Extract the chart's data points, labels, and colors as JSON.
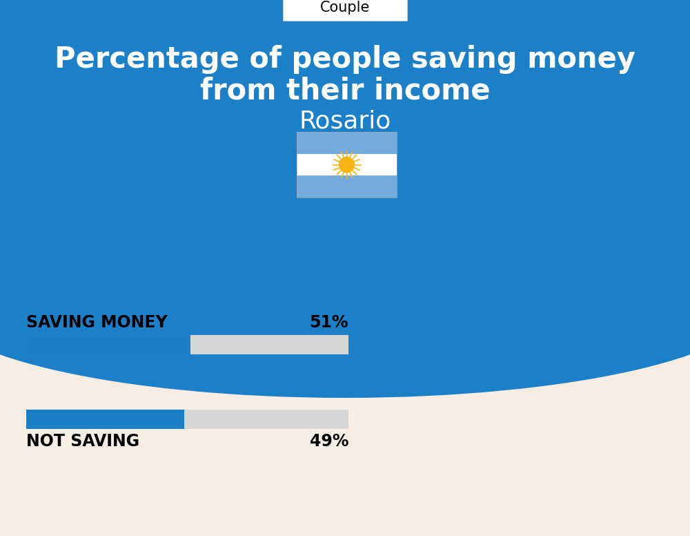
{
  "title_line1": "Percentage of people saving money",
  "title_line2": "from their income",
  "subtitle": "Rosario",
  "tab_label": "Couple",
  "blue_bg_color": "#1B80C8",
  "cream_bg_color": "#F7EDE2",
  "bar_blue": "#1B7FC8",
  "bar_gray": "#D6D6D6",
  "label1": "SAVING MONEY",
  "value1": 51,
  "label1_str": "51%",
  "label2": "NOT SAVING",
  "value2": 49,
  "label2_str": "49%",
  "title_fontsize": 30,
  "subtitle_fontsize": 26,
  "bar_label_fontsize": 17,
  "bar_value_fontsize": 17,
  "tab_fontsize": 15,
  "fig_width": 10.0,
  "fig_height": 7.76,
  "dpi": 100
}
